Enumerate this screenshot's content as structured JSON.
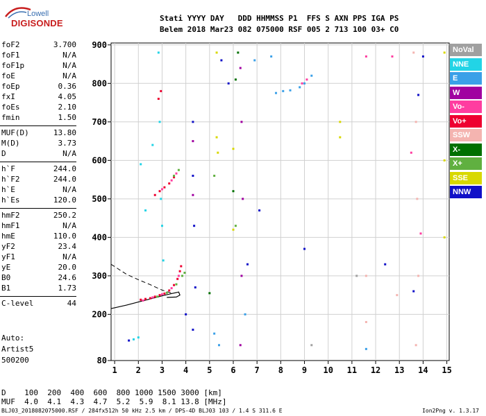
{
  "logo": {
    "brand": "Lowell",
    "product": "DIGISONDE"
  },
  "header": {
    "line1": "Stati YYYY DAY   DDD HHMMSS P1  FFS S AXN PPS IGA PS",
    "line2": "Belem 2018 Mar23 082 075000 RSF 005 2 713 100 03+ C0"
  },
  "params_group1": [
    {
      "name": "foF2",
      "value": "3.700"
    },
    {
      "name": "foF1",
      "value": "N/A"
    },
    {
      "name": "foF1p",
      "value": "N/A"
    },
    {
      "name": "foE",
      "value": "N/A"
    },
    {
      "name": "foEp",
      "value": "0.36"
    },
    {
      "name": "fxI",
      "value": "4.05"
    },
    {
      "name": "foEs",
      "value": "2.10"
    },
    {
      "name": "fmin",
      "value": "1.50"
    }
  ],
  "params_group2": [
    {
      "name": "MUF(D)",
      "value": "13.80"
    },
    {
      "name": "M(D)",
      "value": "3.73"
    },
    {
      "name": "D",
      "value": "N/A"
    }
  ],
  "params_group3": [
    {
      "name": "h`F",
      "value": "244.0"
    },
    {
      "name": "h`F2",
      "value": "244.0"
    },
    {
      "name": "h`E",
      "value": "N/A"
    },
    {
      "name": "h`Es",
      "value": "120.0"
    }
  ],
  "params_group4": [
    {
      "name": "hmF2",
      "value": "250.2"
    },
    {
      "name": "hmF1",
      "value": "N/A"
    },
    {
      "name": "hmE",
      "value": "110.0"
    },
    {
      "name": "yF2",
      "value": "23.4"
    },
    {
      "name": "yF1",
      "value": "N/A"
    },
    {
      "name": "yE",
      "value": "20.0"
    },
    {
      "name": "B0",
      "value": "24.6"
    },
    {
      "name": "B1",
      "value": "1.73"
    }
  ],
  "params_group5": [
    {
      "name": "C-level",
      "value": "44"
    }
  ],
  "autoscaling": {
    "line1": "Auto:",
    "line2": "Artist5",
    "line3": "500200"
  },
  "legend": [
    {
      "label": "NoVal",
      "color": "#a0a0a0"
    },
    {
      "label": "NNE",
      "color": "#22d4e6"
    },
    {
      "label": "E",
      "color": "#3aa0e8"
    },
    {
      "label": "W",
      "color": "#a000a0"
    },
    {
      "label": "Vo-",
      "color": "#ff3da0"
    },
    {
      "label": "Vo+",
      "color": "#ee0030"
    },
    {
      "label": "SSW",
      "color": "#f4b4b0"
    },
    {
      "label": "X-",
      "color": "#007000"
    },
    {
      "label": "X+",
      "color": "#60b040"
    },
    {
      "label": "SSE",
      "color": "#d8d800"
    },
    {
      "label": "NNW",
      "color": "#1010c8"
    }
  ],
  "mufTable": {
    "line1": "D    100  200  400  600  800 1000 1500 3000 [km]",
    "line2": "MUF  4.0  4.1  4.3  4.7  5.2  5.9  8.1 13.8 [MHz]"
  },
  "footer": {
    "left": "BLJ03_2018082075000.RSF / 284fx512h 50 kHz 2.5 km / DPS-4D BLJ03 103 / 1.4 S 311.6 E",
    "right": "Ion2Png v. 1.3.17"
  },
  "chart_data": {
    "type": "scatter",
    "title": "",
    "xlabel": "",
    "ylabel": "",
    "xlim": [
      0.85,
      15.1
    ],
    "ylim": [
      80,
      905
    ],
    "xticks": [
      1,
      2,
      3,
      4,
      5,
      6,
      7,
      8,
      9,
      10,
      11,
      12,
      13,
      14,
      15
    ],
    "yticks": [
      80,
      200,
      300,
      400,
      500,
      600,
      700,
      800,
      900
    ],
    "grid": true,
    "legend_position": "right",
    "series": [
      {
        "name": "Vo+",
        "color": "#ee0030",
        "points": [
          [
            2.1,
            238
          ],
          [
            2.3,
            240
          ],
          [
            2.5,
            242
          ],
          [
            2.7,
            246
          ],
          [
            2.9,
            250
          ],
          [
            3.1,
            254
          ],
          [
            3.3,
            262
          ],
          [
            3.5,
            276
          ],
          [
            3.65,
            292
          ],
          [
            3.75,
            312
          ],
          [
            3.8,
            325
          ],
          [
            2.7,
            510
          ],
          [
            2.9,
            520
          ],
          [
            3.1,
            530
          ],
          [
            3.3,
            540
          ],
          [
            3.5,
            556
          ],
          [
            2.85,
            760
          ],
          [
            2.95,
            780
          ]
        ]
      },
      {
        "name": "Vo-",
        "color": "#ff3da0",
        "points": [
          [
            2.2,
            236
          ],
          [
            2.6,
            244
          ],
          [
            3.0,
            252
          ],
          [
            3.4,
            268
          ],
          [
            3.7,
            300
          ],
          [
            3.0,
            525
          ],
          [
            3.4,
            548
          ],
          [
            3.6,
            566
          ],
          [
            8.9,
            800
          ],
          [
            9.1,
            810
          ],
          [
            11.6,
            870
          ],
          [
            12.7,
            870
          ],
          [
            13.5,
            620
          ],
          [
            13.9,
            410
          ]
        ]
      },
      {
        "name": "X+",
        "color": "#60b040",
        "points": [
          [
            2.8,
            246
          ],
          [
            3.2,
            256
          ],
          [
            3.6,
            278
          ],
          [
            3.85,
            300
          ],
          [
            3.95,
            308
          ],
          [
            3.5,
            560
          ],
          [
            3.7,
            575
          ],
          [
            5.2,
            560
          ],
          [
            6.1,
            430
          ]
        ]
      },
      {
        "name": "X-",
        "color": "#007000",
        "points": [
          [
            5.0,
            255
          ],
          [
            6.0,
            520
          ],
          [
            6.1,
            810
          ],
          [
            6.2,
            880
          ]
        ]
      },
      {
        "name": "NNE",
        "color": "#22d4e6",
        "points": [
          [
            2.85,
            880
          ],
          [
            2.9,
            700
          ],
          [
            2.95,
            500
          ],
          [
            3.0,
            430
          ],
          [
            3.05,
            340
          ],
          [
            2.1,
            590
          ],
          [
            2.3,
            470
          ],
          [
            2.6,
            640
          ],
          [
            1.8,
            135
          ],
          [
            2.0,
            140
          ]
        ]
      },
      {
        "name": "E",
        "color": "#3aa0e8",
        "points": [
          [
            7.8,
            775
          ],
          [
            8.1,
            780
          ],
          [
            8.4,
            782
          ],
          [
            8.8,
            790
          ],
          [
            9.0,
            800
          ],
          [
            9.3,
            820
          ],
          [
            6.9,
            860
          ],
          [
            7.6,
            870
          ],
          [
            5.2,
            150
          ],
          [
            5.4,
            120
          ],
          [
            6.5,
            200
          ],
          [
            11.6,
            110
          ]
        ]
      },
      {
        "name": "W",
        "color": "#a000a0",
        "points": [
          [
            6.3,
            840
          ],
          [
            6.35,
            700
          ],
          [
            6.4,
            500
          ],
          [
            6.35,
            300
          ],
          [
            6.3,
            120
          ],
          [
            4.3,
            650
          ],
          [
            4.3,
            510
          ]
        ]
      },
      {
        "name": "SSW",
        "color": "#f4b4b0",
        "points": [
          [
            13.6,
            880
          ],
          [
            13.7,
            700
          ],
          [
            13.75,
            500
          ],
          [
            13.8,
            300
          ],
          [
            13.7,
            120
          ],
          [
            11.6,
            300
          ],
          [
            11.6,
            180
          ],
          [
            12.9,
            250
          ]
        ]
      },
      {
        "name": "SSE",
        "color": "#d8d800",
        "points": [
          [
            5.3,
            880
          ],
          [
            5.3,
            660
          ],
          [
            5.35,
            620
          ],
          [
            6.0,
            630
          ],
          [
            6.0,
            420
          ],
          [
            10.5,
            700
          ],
          [
            10.5,
            660
          ],
          [
            14.9,
            880
          ],
          [
            14.9,
            600
          ],
          [
            14.9,
            400
          ]
        ]
      },
      {
        "name": "NNW",
        "color": "#1010c8",
        "points": [
          [
            4.3,
            700
          ],
          [
            4.3,
            560
          ],
          [
            4.35,
            430
          ],
          [
            4.4,
            270
          ],
          [
            4.3,
            160
          ],
          [
            5.5,
            860
          ],
          [
            5.8,
            800
          ],
          [
            6.6,
            330
          ],
          [
            7.1,
            470
          ],
          [
            9.0,
            370
          ],
          [
            12.4,
            330
          ],
          [
            13.6,
            260
          ],
          [
            14.0,
            870
          ],
          [
            13.8,
            770
          ],
          [
            1.6,
            132
          ],
          [
            4.0,
            200
          ]
        ]
      },
      {
        "name": "NoVal",
        "color": "#a0a0a0",
        "points": [
          [
            9.3,
            120
          ],
          [
            11.2,
            300
          ]
        ]
      }
    ],
    "profile": [
      [
        0.85,
        215
      ],
      [
        1.5,
        224
      ],
      [
        2.0,
        232
      ],
      [
        2.5,
        240
      ],
      [
        3.0,
        248
      ],
      [
        3.4,
        254
      ],
      [
        3.7,
        258
      ],
      [
        3.75,
        250
      ],
      [
        3.6,
        245
      ],
      [
        3.2,
        244
      ]
    ],
    "profile_dashed": [
      [
        0.85,
        330
      ],
      [
        1.5,
        304
      ],
      [
        2.0,
        290
      ],
      [
        2.5,
        277
      ],
      [
        3.0,
        263
      ],
      [
        3.4,
        255
      ]
    ]
  }
}
